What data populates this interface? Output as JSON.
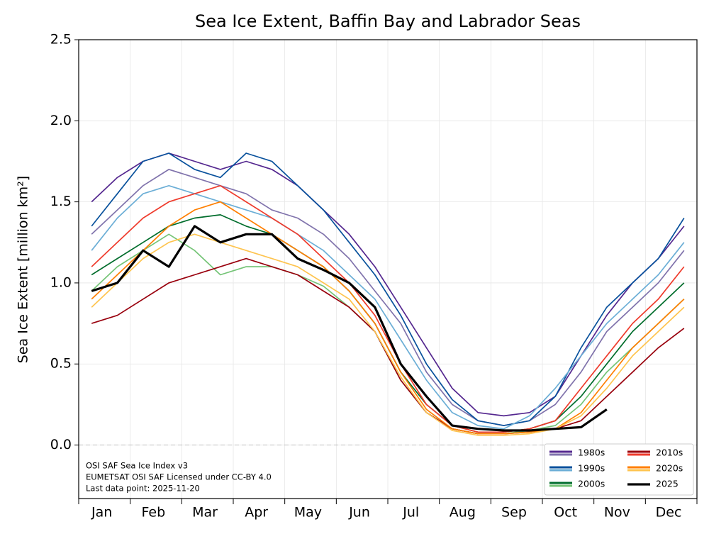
{
  "chart_data": {
    "type": "line",
    "title": "Sea Ice Extent, Baffin Bay and Labrador Seas",
    "y_label": "Sea Ice Extent [million km²]",
    "categories": [
      "Jan",
      "Feb",
      "Mar",
      "Apr",
      "May",
      "Jun",
      "Jul",
      "Aug",
      "Sep",
      "Oct",
      "Nov",
      "Dec"
    ],
    "ylim": [
      -0.33,
      2.5
    ],
    "yticks": [
      {
        "value": 0,
        "label": "0.0"
      },
      {
        "value": 0.5,
        "label": "0.5"
      },
      {
        "value": 1,
        "label": "1.0"
      },
      {
        "value": 1.5,
        "label": "1.5"
      },
      {
        "value": 2,
        "label": "2.0"
      },
      {
        "value": 2.5,
        "label": "2.5"
      }
    ],
    "grid": true,
    "hline": 0,
    "annotations": [
      "OSI SAF Sea Ice Index v3",
      "EUMETSAT OSI SAF Licensed under CC-BY 4.0",
      "Last data point: 2025-11-20"
    ],
    "legend_loc": "lower right",
    "series": [
      {
        "name": "1980s",
        "colors": [
          "#54278f",
          "#8073ac"
        ],
        "lines": [
          [
            1.5,
            1.65,
            1.75,
            1.8,
            1.75,
            1.7,
            1.75,
            1.7,
            1.6,
            1.45,
            1.3,
            1.1,
            0.85,
            0.6,
            0.35,
            0.2,
            0.18,
            0.2,
            0.3,
            0.55,
            0.8,
            1.0,
            1.15,
            1.35
          ],
          [
            1.3,
            1.45,
            1.6,
            1.7,
            1.65,
            1.6,
            1.55,
            1.45,
            1.4,
            1.3,
            1.15,
            0.95,
            0.75,
            0.45,
            0.25,
            0.15,
            0.12,
            0.15,
            0.25,
            0.45,
            0.7,
            0.85,
            1.0,
            1.2
          ]
        ]
      },
      {
        "name": "1990s",
        "colors": [
          "#08519c",
          "#6baed6"
        ],
        "lines": [
          [
            1.35,
            1.55,
            1.75,
            1.8,
            1.7,
            1.65,
            1.8,
            1.75,
            1.6,
            1.45,
            1.25,
            1.05,
            0.8,
            0.5,
            0.28,
            0.15,
            0.12,
            0.15,
            0.3,
            0.6,
            0.85,
            1.0,
            1.15,
            1.4
          ],
          [
            1.2,
            1.4,
            1.55,
            1.6,
            1.55,
            1.5,
            1.45,
            1.4,
            1.3,
            1.2,
            1.05,
            0.9,
            0.65,
            0.4,
            0.2,
            0.12,
            0.1,
            0.18,
            0.35,
            0.55,
            0.75,
            0.9,
            1.05,
            1.25
          ]
        ]
      },
      {
        "name": "2000s",
        "colors": [
          "#006d2c",
          "#74c476"
        ],
        "lines": [
          [
            1.05,
            1.15,
            1.25,
            1.35,
            1.4,
            1.42,
            1.35,
            1.3,
            1.2,
            1.1,
            0.95,
            0.75,
            0.45,
            0.25,
            0.12,
            0.08,
            0.08,
            0.1,
            0.15,
            0.3,
            0.5,
            0.7,
            0.85,
            1.0
          ],
          [
            0.95,
            1.1,
            1.2,
            1.3,
            1.2,
            1.05,
            1.1,
            1.1,
            1.05,
            0.98,
            0.85,
            0.7,
            0.4,
            0.2,
            0.1,
            0.07,
            0.07,
            0.09,
            0.12,
            0.25,
            0.45,
            0.6,
            0.75,
            0.9
          ]
        ]
      },
      {
        "name": "2010s",
        "colors": [
          "#99000d",
          "#ef3b2c"
        ],
        "lines": [
          [
            0.75,
            0.8,
            0.9,
            1.0,
            1.05,
            1.1,
            1.15,
            1.1,
            1.05,
            0.95,
            0.85,
            0.7,
            0.4,
            0.2,
            0.1,
            0.07,
            0.07,
            0.08,
            0.1,
            0.15,
            0.3,
            0.45,
            0.6,
            0.72
          ],
          [
            1.1,
            1.25,
            1.4,
            1.5,
            1.55,
            1.6,
            1.5,
            1.4,
            1.3,
            1.15,
            1.0,
            0.8,
            0.5,
            0.25,
            0.12,
            0.08,
            0.08,
            0.1,
            0.15,
            0.35,
            0.55,
            0.75,
            0.9,
            1.1
          ]
        ]
      },
      {
        "name": "2020s",
        "colors": [
          "#ff7f00",
          "#fec44f"
        ],
        "lines": [
          [
            0.9,
            1.05,
            1.2,
            1.35,
            1.45,
            1.5,
            1.4,
            1.3,
            1.2,
            1.1,
            0.95,
            0.75,
            0.45,
            0.22,
            0.1,
            0.07,
            0.07,
            0.08,
            0.1,
            0.2,
            0.4,
            0.6,
            0.75,
            0.9
          ],
          [
            0.85,
            1.0,
            1.15,
            1.25,
            1.3,
            1.25,
            1.2,
            1.15,
            1.1,
            1.0,
            0.9,
            0.7,
            0.42,
            0.2,
            0.09,
            0.06,
            0.06,
            0.07,
            0.1,
            0.18,
            0.35,
            0.55,
            0.7,
            0.85
          ]
        ]
      },
      {
        "name": "2025",
        "colors": [
          "#000000"
        ],
        "width": 3.2,
        "lines": [
          [
            0.95,
            1.0,
            1.2,
            1.1,
            1.35,
            1.25,
            1.3,
            1.3,
            1.15,
            1.08,
            1.0,
            0.85,
            0.5,
            0.3,
            0.12,
            0.1,
            0.09,
            0.09,
            0.1,
            0.11,
            0.22,
            null,
            null,
            null
          ]
        ]
      }
    ]
  }
}
